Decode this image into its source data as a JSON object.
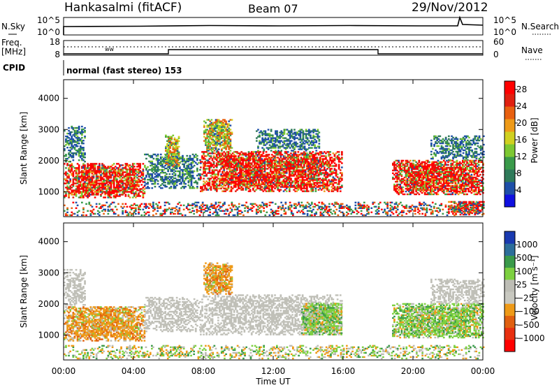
{
  "header": {
    "station": "Hankasalmi (fitACF)",
    "beam": "Beam 07",
    "date": "29/Nov/2012"
  },
  "status_panels": {
    "nsky_label": "N.Sky",
    "nsearch_label": "N.Search",
    "noise_ticks": [
      "10^5",
      "10^0"
    ],
    "freq_label_1": "Freq.",
    "freq_label_2": "[MHz]",
    "freq_ticks": [
      "18",
      "8"
    ],
    "nave_label": "Nave",
    "nave_ticks": [
      "60",
      "0"
    ],
    "cpid_label": "CPID",
    "cpid_text": "normal (fast stereo) 153"
  },
  "colors": {
    "power_scale": [
      "#1010e0",
      "#1e4fa8",
      "#2f7a5a",
      "#3a9a4a",
      "#7dc832",
      "#d0d020",
      "#ee9a18",
      "#e86010",
      "#e02010",
      "#ff0000"
    ],
    "velocity_scale": [
      "#ff0000",
      "#e83010",
      "#e06010",
      "#ee9a18",
      "#bdbdb5",
      "#c8c8c0",
      "#7dd040",
      "#3a9a4a",
      "#2d6e9a",
      "#1a3ab0"
    ],
    "ground_scatter": "#c0c0b8"
  },
  "chart_data": [
    {
      "type": "heatmap",
      "title": "",
      "panel": "power",
      "xlabel": "Time UT",
      "ylabel": "Slant Range [km]",
      "x_ticks": [
        "00:00",
        "04:00",
        "08:00",
        "12:00",
        "16:00",
        "20:00",
        "00:00"
      ],
      "y_ticks": [
        1000,
        2000,
        3000,
        4000
      ],
      "xlim": [
        0,
        24
      ],
      "ylim": [
        200,
        4600
      ],
      "colorbar_label": "Power [dB]",
      "colorbar_ticks": [
        4,
        8,
        12,
        16,
        20,
        24,
        28
      ],
      "colorbar_range": [
        0,
        30
      ],
      "regions": [
        {
          "t0": 0.0,
          "t1": 4.6,
          "r0": 800,
          "r1": 1900,
          "level": "high"
        },
        {
          "t0": 0.0,
          "t1": 1.2,
          "r0": 1950,
          "r1": 3100,
          "level": "low"
        },
        {
          "t0": 4.6,
          "t1": 7.8,
          "r0": 1100,
          "r1": 2200,
          "level": "low"
        },
        {
          "t0": 5.8,
          "t1": 6.6,
          "r0": 1800,
          "r1": 2800,
          "level": "mid"
        },
        {
          "t0": 7.8,
          "t1": 15.9,
          "r0": 1000,
          "r1": 2300,
          "level": "high"
        },
        {
          "t0": 8.0,
          "t1": 9.6,
          "r0": 2300,
          "r1": 3300,
          "level": "mid"
        },
        {
          "t0": 11.0,
          "t1": 14.6,
          "r0": 2300,
          "r1": 3000,
          "level": "low"
        },
        {
          "t0": 18.8,
          "t1": 24.0,
          "r0": 900,
          "r1": 2000,
          "level": "high"
        },
        {
          "t0": 21.0,
          "t1": 24.0,
          "r0": 2000,
          "r1": 2800,
          "level": "low"
        },
        {
          "t0": 22.0,
          "t1": 24.0,
          "r0": 250,
          "r1": 700,
          "level": "high"
        },
        {
          "t0": 0.0,
          "t1": 24.0,
          "r0": 230,
          "r1": 650,
          "level": "sparse"
        }
      ]
    },
    {
      "type": "heatmap",
      "title": "",
      "panel": "velocity",
      "xlabel": "Time UT",
      "ylabel": "Slant Range [km]",
      "x_ticks": [
        "00:00",
        "04:00",
        "08:00",
        "12:00",
        "16:00",
        "20:00",
        "00:00"
      ],
      "y_ticks": [
        1000,
        2000,
        3000,
        4000
      ],
      "xlim": [
        0,
        24
      ],
      "ylim": [
        200,
        4600
      ],
      "colorbar_label": "Velocity [m s⁻¹]",
      "colorbar_ticks": [
        "1000",
        "500",
        "100",
        "25",
        "−25",
        "−100",
        "−500",
        "−1000"
      ],
      "regions": [
        {
          "t0": 0.0,
          "t1": 4.6,
          "r0": 800,
          "r1": 1900,
          "level": "negative"
        },
        {
          "t0": 0.0,
          "t1": 1.2,
          "r0": 1950,
          "r1": 3100,
          "level": "ground"
        },
        {
          "t0": 4.6,
          "t1": 7.8,
          "r0": 1100,
          "r1": 2200,
          "level": "ground"
        },
        {
          "t0": 7.8,
          "t1": 15.9,
          "r0": 1000,
          "r1": 2300,
          "level": "ground"
        },
        {
          "t0": 8.0,
          "t1": 9.6,
          "r0": 2300,
          "r1": 3300,
          "level": "negative"
        },
        {
          "t0": 13.6,
          "t1": 15.9,
          "r0": 1000,
          "r1": 2000,
          "level": "positive"
        },
        {
          "t0": 18.8,
          "t1": 24.0,
          "r0": 900,
          "r1": 2000,
          "level": "positive"
        },
        {
          "t0": 21.0,
          "t1": 24.0,
          "r0": 2000,
          "r1": 2800,
          "level": "ground"
        },
        {
          "t0": 0.0,
          "t1": 24.0,
          "r0": 230,
          "r1": 650,
          "level": "sparse"
        }
      ]
    }
  ]
}
